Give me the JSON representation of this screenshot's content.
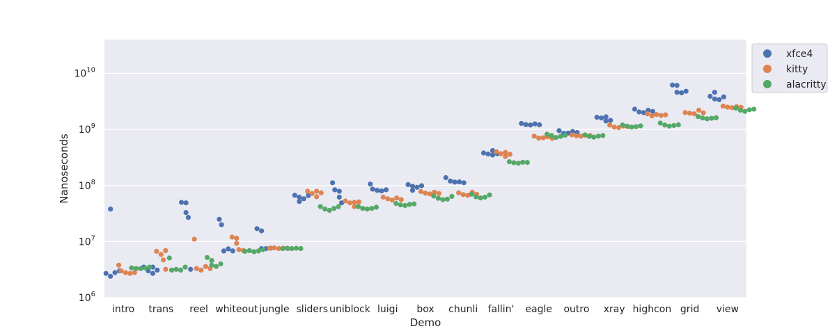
{
  "chart_data": {
    "type": "scatter",
    "style": "swarm",
    "xlabel": "Demo",
    "ylabel": "Nanoseconds",
    "yscale": "log",
    "ylim": [
      1000000,
      40000000000
    ],
    "y_ticks": [
      {
        "value": 1000000,
        "base": "10",
        "exp": "6"
      },
      {
        "value": 10000000,
        "base": "10",
        "exp": "7"
      },
      {
        "value": 100000000,
        "base": "10",
        "exp": "8"
      },
      {
        "value": 1000000000,
        "base": "10",
        "exp": "9"
      },
      {
        "value": 10000000000,
        "base": "10",
        "exp": "10"
      }
    ],
    "grid": true,
    "legend_position": "outside-top-right",
    "categories": [
      "intro",
      "trans",
      "reel",
      "whiteout",
      "jungle",
      "sliders",
      "uniblock",
      "luigi",
      "box",
      "chunli",
      "fallin'",
      "eagle",
      "outro",
      "xray",
      "highcon",
      "grid",
      "view"
    ],
    "series": [
      {
        "name": "xfce4",
        "color": "#4c72b0",
        "values": [
          [
            2700000,
            2400000,
            38000000,
            2800000,
            3000000
          ],
          [
            3500000,
            3000000,
            2700000,
            3500000,
            3100000
          ],
          [
            50000000,
            49000000,
            33000000,
            27000000,
            3200000
          ],
          [
            25000000,
            20000000,
            6800000,
            7400000,
            6800000
          ],
          [
            17000000,
            15500000,
            7500000,
            7500000,
            7600000
          ],
          [
            67000000,
            62000000,
            52000000,
            58000000,
            66000000
          ],
          [
            112000000,
            84000000,
            79000000,
            62000000,
            49000000
          ],
          [
            106000000,
            86000000,
            82000000,
            80000000,
            84000000
          ],
          [
            104000000,
            97000000,
            93000000,
            82000000,
            99000000
          ],
          [
            138000000,
            120000000,
            115000000,
            116000000,
            112000000
          ],
          [
            380000000,
            365000000,
            350000000,
            420000000,
            370000000
          ],
          [
            1280000000,
            1220000000,
            1200000000,
            1260000000,
            1210000000
          ],
          [
            950000000,
            850000000,
            860000000,
            920000000,
            880000000
          ],
          [
            1650000000,
            1600000000,
            1420000000,
            1450000000,
            1680000000
          ],
          [
            2300000000,
            2050000000,
            2000000000,
            2200000000,
            2100000000
          ],
          [
            6200000000,
            6100000000,
            4600000000,
            4500000000,
            4800000000
          ],
          [
            3900000000,
            3500000000,
            4600000000,
            3400000000,
            3800000000
          ]
        ]
      },
      {
        "name": "kitty",
        "color": "#dd8452",
        "values": [
          [
            3800000,
            3000000,
            2800000,
            2700000,
            2800000
          ],
          [
            6700000,
            5900000,
            6900000,
            4700000,
            3200000
          ],
          [
            11000000,
            3300000,
            3100000,
            3600000,
            3300000
          ],
          [
            12000000,
            11500000,
            9300000,
            7200000,
            6900000
          ],
          [
            7600000,
            7700000,
            7500000,
            7600000,
            7500000
          ],
          [
            79000000,
            72000000,
            63000000,
            79000000,
            74000000
          ],
          [
            53000000,
            49000000,
            50000000,
            42000000,
            51000000
          ],
          [
            62000000,
            58000000,
            55000000,
            60000000,
            56000000
          ],
          [
            78000000,
            73000000,
            71000000,
            76000000,
            72000000
          ],
          [
            74000000,
            69000000,
            67000000,
            76000000,
            70000000
          ],
          [
            400000000,
            370000000,
            330000000,
            390000000,
            360000000
          ],
          [
            760000000,
            700000000,
            710000000,
            740000000,
            690000000
          ],
          [
            800000000,
            770000000,
            760000000,
            790000000,
            780000000
          ],
          [
            1200000000,
            1100000000,
            1080000000,
            1150000000,
            1120000000
          ],
          [
            1900000000,
            1750000000,
            1850000000,
            1780000000,
            1820000000
          ],
          [
            2000000000,
            1950000000,
            1900000000,
            2200000000,
            1980000000
          ],
          [
            2600000000,
            2500000000,
            2450000000,
            2550000000,
            2480000000
          ]
        ]
      },
      {
        "name": "alacritty",
        "color": "#55a868",
        "values": [
          [
            3400000,
            3300000,
            3300000,
            3400000,
            3500000
          ],
          [
            5100000,
            3100000,
            3200000,
            3100000,
            3500000
          ],
          [
            5200000,
            4600000,
            3800000,
            3600000,
            4000000
          ],
          [
            6700000,
            6900000,
            6600000,
            6800000,
            7200000
          ],
          [
            7500000,
            7600000,
            7500000,
            7600000,
            7500000
          ],
          [
            42000000,
            38000000,
            36000000,
            39000000,
            42000000
          ],
          [
            42000000,
            39000000,
            38000000,
            39000000,
            41000000
          ],
          [
            48000000,
            45000000,
            44000000,
            46000000,
            47000000
          ],
          [
            65000000,
            59000000,
            56000000,
            57000000,
            64000000
          ],
          [
            70000000,
            63000000,
            60000000,
            62000000,
            68000000
          ],
          [
            265000000,
            255000000,
            250000000,
            260000000,
            258000000
          ],
          [
            820000000,
            780000000,
            720000000,
            750000000,
            790000000
          ],
          [
            800000000,
            750000000,
            730000000,
            760000000,
            780000000
          ],
          [
            1200000000,
            1150000000,
            1100000000,
            1120000000,
            1160000000
          ],
          [
            1300000000,
            1200000000,
            1150000000,
            1180000000,
            1210000000
          ],
          [
            1700000000,
            1600000000,
            1550000000,
            1580000000,
            1620000000
          ],
          [
            2400000000,
            2200000000,
            2100000000,
            2250000000,
            2300000000
          ]
        ]
      }
    ]
  }
}
